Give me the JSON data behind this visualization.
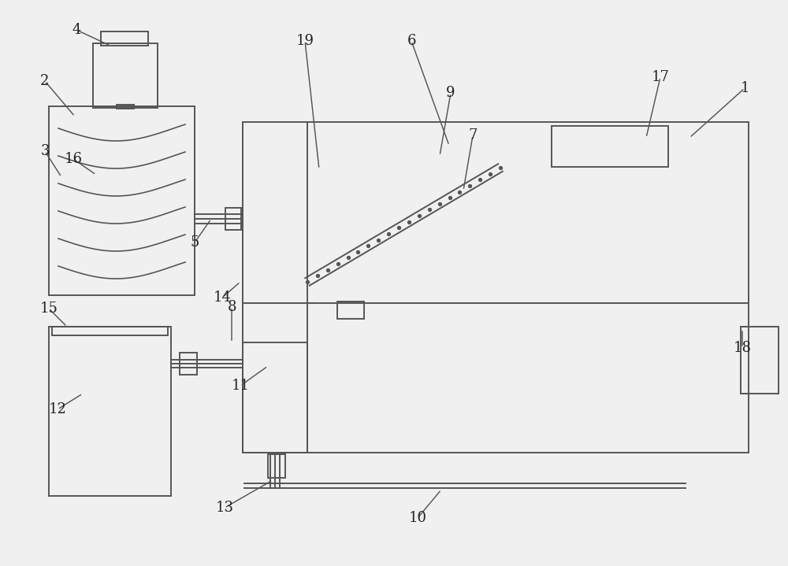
{
  "bg_color": "#f0f0f0",
  "line_color": "#555555",
  "lw": 1.4,
  "fs": 13
}
